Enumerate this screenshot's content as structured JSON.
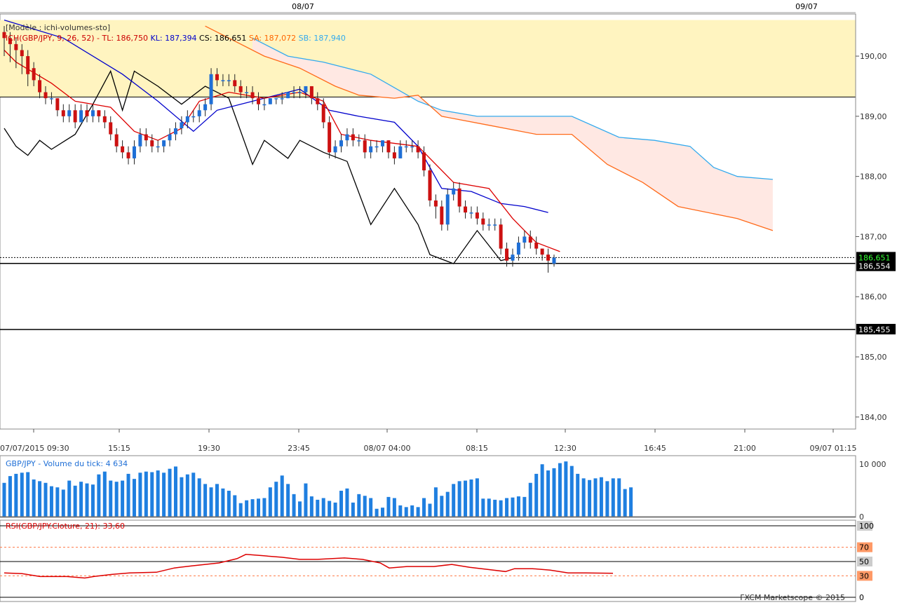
{
  "top_dates": [
    "08/07",
    "09/07"
  ],
  "main_panel": {
    "model_label": "[Modèle : ichi-volumes-sto]",
    "legend": [
      {
        "text": "ICH(GBP/JPY, 9, 26, 52) -",
        "color": "#cc0000"
      },
      {
        "text": "TL: 186,750",
        "color": "#cc0000"
      },
      {
        "text": "KL: 187,394",
        "color": "#0000cc"
      },
      {
        "text": "CS: 186,651",
        "color": "#000000"
      },
      {
        "text": "SA: 187,072",
        "color": "#ff6600"
      },
      {
        "text": "SB: 187,940",
        "color": "#33aaee"
      }
    ],
    "price_badges": [
      {
        "label": "186,651",
        "value": 186.651,
        "bg": "#000000",
        "fg": "#33ff33"
      },
      {
        "label": "186,554",
        "value": 186.554,
        "bg": "#000000",
        "fg": "#ffffff"
      },
      {
        "label": "185,455",
        "value": 185.455,
        "bg": "#000000",
        "fg": "#ffffff"
      }
    ]
  },
  "time_labels": [
    "07/07/2015 09:30",
    "15:15",
    "19:30",
    "23:45",
    "08/07 04:00",
    "08:15",
    "12:30",
    "16:45",
    "21:00",
    "09/07 01:15"
  ],
  "volume_panel": {
    "label": "GBP/JPY - Volume du tick: 4 634",
    "ticks": [
      "10 000",
      "0"
    ]
  },
  "rsi_panel": {
    "label": "RSI(GBP/JPY.Cloture, 21): 33,60",
    "ticks": [
      "100",
      "70",
      "50",
      "30",
      "0"
    ]
  },
  "footer": "FXCM Marketscope © 2015",
  "colors": {
    "bull": "#1f6fd6",
    "bear": "#cc1111",
    "tenkan": "#dd0000",
    "kijun": "#0000cc",
    "chikou": "#000000",
    "span_a": "#ff6a1a",
    "span_b": "#33aaee",
    "cloud_fill": "#ffe8e3",
    "volume": "#1f7fe0",
    "rsi": "#dd0000",
    "zone": "#fff4c0"
  },
  "chart_data": {
    "type": "candlestick",
    "symbol": "GBP/JPY",
    "ylim": [
      183.8,
      190.7
    ],
    "yticks": [
      184,
      185,
      186,
      187,
      188,
      189,
      190
    ],
    "candles": [
      [
        190.4,
        190.5,
        190.0,
        190.3
      ],
      [
        190.3,
        190.4,
        189.9,
        190.2
      ],
      [
        190.2,
        190.3,
        189.8,
        190.1
      ],
      [
        190.1,
        190.2,
        189.7,
        190.0
      ],
      [
        190.0,
        190.1,
        189.5,
        189.7
      ],
      [
        189.8,
        189.9,
        189.5,
        189.6
      ],
      [
        189.6,
        189.7,
        189.3,
        189.4
      ],
      [
        189.4,
        189.5,
        189.2,
        189.3
      ],
      [
        189.3,
        189.4,
        189.2,
        189.3
      ],
      [
        189.3,
        189.3,
        189.0,
        189.1
      ],
      [
        189.1,
        189.2,
        188.9,
        189.0
      ],
      [
        189.0,
        189.2,
        188.9,
        189.1
      ],
      [
        189.1,
        189.2,
        188.8,
        188.9
      ],
      [
        188.9,
        189.2,
        188.9,
        189.1
      ],
      [
        189.1,
        189.2,
        188.9,
        189.0
      ],
      [
        189.0,
        189.2,
        188.9,
        189.1
      ],
      [
        189.1,
        189.1,
        188.9,
        189.0
      ],
      [
        189.0,
        189.1,
        188.8,
        188.9
      ],
      [
        188.9,
        189.0,
        188.6,
        188.7
      ],
      [
        188.7,
        188.8,
        188.4,
        188.5
      ],
      [
        188.5,
        188.6,
        188.3,
        188.4
      ],
      [
        188.4,
        188.5,
        188.2,
        188.3
      ],
      [
        188.3,
        188.6,
        188.2,
        188.5
      ],
      [
        188.5,
        188.8,
        188.4,
        188.7
      ],
      [
        188.7,
        188.8,
        188.5,
        188.6
      ],
      [
        188.6,
        188.7,
        188.4,
        188.5
      ],
      [
        188.5,
        188.6,
        188.4,
        188.5
      ],
      [
        188.5,
        188.6,
        188.4,
        188.6
      ],
      [
        188.6,
        188.8,
        188.5,
        188.7
      ],
      [
        188.7,
        188.9,
        188.6,
        188.8
      ],
      [
        188.8,
        189.0,
        188.7,
        188.9
      ],
      [
        188.9,
        189.1,
        188.8,
        189.0
      ],
      [
        189.0,
        189.1,
        188.9,
        189.0
      ],
      [
        189.0,
        189.2,
        188.9,
        189.1
      ],
      [
        189.1,
        189.3,
        189.0,
        189.2
      ],
      [
        189.2,
        189.8,
        189.1,
        189.7
      ],
      [
        189.7,
        189.8,
        189.5,
        189.6
      ],
      [
        189.6,
        189.7,
        189.5,
        189.6
      ],
      [
        189.6,
        189.7,
        189.5,
        189.6
      ],
      [
        189.6,
        189.7,
        189.4,
        189.5
      ],
      [
        189.5,
        189.6,
        189.3,
        189.4
      ],
      [
        189.4,
        189.5,
        189.3,
        189.4
      ],
      [
        189.4,
        189.5,
        189.2,
        189.3
      ],
      [
        189.3,
        189.4,
        189.1,
        189.2
      ],
      [
        189.2,
        189.3,
        189.1,
        189.2
      ],
      [
        189.2,
        189.3,
        189.2,
        189.3
      ],
      [
        189.3,
        189.3,
        189.2,
        189.3
      ],
      [
        189.3,
        189.4,
        189.2,
        189.3
      ],
      [
        189.3,
        189.4,
        189.3,
        189.4
      ],
      [
        189.4,
        189.5,
        189.3,
        189.4
      ],
      [
        189.4,
        189.5,
        189.3,
        189.4
      ],
      [
        189.4,
        189.5,
        189.3,
        189.5
      ],
      [
        189.5,
        189.5,
        189.2,
        189.3
      ],
      [
        189.3,
        189.4,
        189.1,
        189.2
      ],
      [
        189.2,
        189.3,
        188.8,
        188.9
      ],
      [
        188.9,
        189.0,
        188.3,
        188.4
      ],
      [
        188.4,
        188.6,
        188.3,
        188.5
      ],
      [
        188.5,
        188.7,
        188.4,
        188.6
      ],
      [
        188.6,
        188.8,
        188.5,
        188.7
      ],
      [
        188.7,
        188.8,
        188.5,
        188.6
      ],
      [
        188.6,
        188.7,
        188.5,
        188.6
      ],
      [
        188.6,
        188.7,
        188.3,
        188.4
      ],
      [
        188.4,
        188.6,
        188.3,
        188.5
      ],
      [
        188.5,
        188.6,
        188.4,
        188.5
      ],
      [
        188.5,
        188.6,
        188.4,
        188.6
      ],
      [
        188.6,
        188.6,
        188.3,
        188.4
      ],
      [
        188.4,
        188.5,
        188.2,
        188.3
      ],
      [
        188.3,
        188.6,
        188.3,
        188.5
      ],
      [
        188.5,
        188.6,
        188.4,
        188.5
      ],
      [
        188.5,
        188.6,
        188.4,
        188.5
      ],
      [
        188.5,
        188.6,
        188.3,
        188.4
      ],
      [
        188.4,
        188.5,
        188.0,
        188.1
      ],
      [
        188.1,
        188.2,
        187.5,
        187.6
      ],
      [
        187.6,
        187.7,
        187.3,
        187.5
      ],
      [
        187.5,
        187.6,
        187.1,
        187.2
      ],
      [
        187.2,
        187.8,
        187.1,
        187.7
      ],
      [
        187.7,
        187.9,
        187.6,
        187.8
      ],
      [
        187.8,
        187.9,
        187.4,
        187.5
      ],
      [
        187.5,
        187.6,
        187.3,
        187.4
      ],
      [
        187.4,
        187.5,
        187.3,
        187.4
      ],
      [
        187.4,
        187.5,
        187.2,
        187.3
      ],
      [
        187.3,
        187.4,
        187.1,
        187.2
      ],
      [
        187.2,
        187.3,
        187.1,
        187.2
      ],
      [
        187.2,
        187.3,
        187.1,
        187.2
      ],
      [
        187.2,
        187.3,
        186.7,
        186.8
      ],
      [
        186.8,
        186.9,
        186.5,
        186.6
      ],
      [
        186.6,
        186.8,
        186.5,
        186.7
      ],
      [
        186.7,
        187.0,
        186.6,
        186.9
      ],
      [
        186.9,
        187.1,
        186.8,
        187.0
      ],
      [
        187.0,
        187.1,
        186.8,
        186.9
      ],
      [
        186.9,
        187.0,
        186.7,
        186.8
      ],
      [
        186.8,
        186.8,
        186.6,
        186.7
      ],
      [
        186.7,
        186.8,
        186.4,
        186.6
      ],
      [
        186.55,
        186.7,
        186.5,
        186.65
      ]
    ],
    "tenkan": [
      [
        0,
        190.1
      ],
      [
        2,
        189.9
      ],
      [
        8,
        189.55
      ],
      [
        12,
        189.25
      ],
      [
        18,
        189.15
      ],
      [
        22,
        188.75
      ],
      [
        26,
        188.6
      ],
      [
        30,
        188.8
      ],
      [
        33,
        189.25
      ],
      [
        38,
        189.4
      ],
      [
        44,
        189.3
      ],
      [
        50,
        189.4
      ],
      [
        54,
        189.25
      ],
      [
        57,
        188.7
      ],
      [
        62,
        188.6
      ],
      [
        70,
        188.5
      ],
      [
        76,
        187.9
      ],
      [
        82,
        187.8
      ],
      [
        86,
        187.3
      ],
      [
        90,
        186.9
      ],
      [
        94,
        186.75
      ]
    ],
    "kijun": [
      [
        0,
        190.6
      ],
      [
        10,
        190.3
      ],
      [
        20,
        189.7
      ],
      [
        26,
        189.25
      ],
      [
        32,
        188.75
      ],
      [
        36,
        189.1
      ],
      [
        50,
        189.45
      ],
      [
        55,
        189.1
      ],
      [
        60,
        189.0
      ],
      [
        66,
        188.9
      ],
      [
        70,
        188.5
      ],
      [
        74,
        187.8
      ],
      [
        79,
        187.75
      ],
      [
        84,
        187.55
      ],
      [
        88,
        187.5
      ],
      [
        92,
        187.4
      ]
    ],
    "chikou": [
      [
        0,
        188.8
      ],
      [
        2,
        188.5
      ],
      [
        4,
        188.35
      ],
      [
        6,
        188.6
      ],
      [
        8,
        188.45
      ],
      [
        12,
        188.7
      ],
      [
        15,
        189.2
      ],
      [
        18,
        189.75
      ],
      [
        20,
        189.1
      ],
      [
        22,
        189.75
      ],
      [
        26,
        189.5
      ],
      [
        30,
        189.2
      ],
      [
        34,
        189.5
      ],
      [
        38,
        189.3
      ],
      [
        42,
        188.2
      ],
      [
        44,
        188.6
      ],
      [
        48,
        188.3
      ],
      [
        50,
        188.6
      ],
      [
        54,
        188.4
      ],
      [
        58,
        188.25
      ],
      [
        62,
        187.2
      ],
      [
        66,
        187.8
      ],
      [
        70,
        187.2
      ],
      [
        72,
        186.7
      ],
      [
        76,
        186.55
      ],
      [
        80,
        187.1
      ],
      [
        84,
        186.6
      ],
      [
        86,
        186.65
      ]
    ],
    "span_a": [
      [
        34,
        190.5
      ],
      [
        38,
        190.3
      ],
      [
        44,
        190.0
      ],
      [
        50,
        189.8
      ],
      [
        56,
        189.5
      ],
      [
        60,
        189.35
      ],
      [
        66,
        189.3
      ],
      [
        70,
        189.35
      ],
      [
        74,
        189.0
      ],
      [
        82,
        188.85
      ],
      [
        90,
        188.7
      ],
      [
        96,
        188.7
      ],
      [
        102,
        188.2
      ],
      [
        108,
        187.9
      ],
      [
        114,
        187.5
      ],
      [
        124,
        187.3
      ],
      [
        130,
        187.1
      ]
    ],
    "span_b": [
      [
        42,
        190.3
      ],
      [
        48,
        190.0
      ],
      [
        54,
        189.9
      ],
      [
        62,
        189.7
      ],
      [
        70,
        189.25
      ],
      [
        74,
        189.1
      ],
      [
        80,
        189.0
      ],
      [
        96,
        189.0
      ],
      [
        104,
        188.65
      ],
      [
        110,
        188.6
      ],
      [
        116,
        188.5
      ],
      [
        120,
        188.15
      ],
      [
        124,
        188.0
      ],
      [
        130,
        187.95
      ]
    ],
    "volumes": [
      6000,
      7200,
      7600,
      7800,
      7900,
      6600,
      6300,
      6000,
      5400,
      5200,
      4800,
      6400,
      5500,
      6200,
      5900,
      5700,
      7500,
      8000,
      6400,
      6200,
      6400,
      7600,
      6700,
      7800,
      8000,
      7900,
      8200,
      7800,
      8500,
      8900,
      7000,
      7500,
      7800,
      6800,
      5800,
      5200,
      5800,
      5000,
      4600,
      3800,
      2400,
      2900,
      3100,
      3200,
      3300,
      5200,
      6200,
      7300,
      5800,
      4000,
      2700,
      5900,
      3600,
      3000,
      3300,
      2800,
      2500,
      4600,
      5000,
      2500,
      4000,
      3700,
      3300,
      1400,
      1600,
      3500,
      3300,
      2000,
      1700,
      2000,
      1700,
      3300,
      2300,
      5200,
      3700,
      4400,
      5800,
      6300,
      6400,
      6600,
      6800,
      3200,
      3200,
      3000,
      2900,
      3300,
      3400,
      3600,
      3500,
      6000,
      7600,
      9300,
      8200,
      8600,
      9500,
      9800,
      9000,
      7600,
      6800,
      6500,
      6800,
      7000,
      6300,
      6800,
      6800,
      4900,
      5200
    ],
    "volume_ylim": [
      0,
      10200
    ],
    "rsi": [
      [
        0,
        34
      ],
      [
        4,
        33
      ],
      [
        8,
        29
      ],
      [
        14,
        29
      ],
      [
        18,
        27
      ],
      [
        20,
        29
      ],
      [
        24,
        32
      ],
      [
        28,
        34
      ],
      [
        34,
        35
      ],
      [
        38,
        41
      ],
      [
        42,
        44
      ],
      [
        48,
        48
      ],
      [
        52,
        54
      ],
      [
        54,
        60
      ],
      [
        58,
        58
      ],
      [
        62,
        56
      ],
      [
        66,
        53
      ],
      [
        70,
        53
      ],
      [
        76,
        55
      ],
      [
        80,
        53
      ],
      [
        84,
        48
      ],
      [
        86,
        41
      ],
      [
        90,
        43
      ],
      [
        96,
        43
      ],
      [
        100,
        46
      ],
      [
        104,
        42
      ],
      [
        108,
        39
      ],
      [
        112,
        36
      ],
      [
        114,
        40
      ],
      [
        118,
        40
      ],
      [
        122,
        38
      ],
      [
        126,
        34
      ],
      [
        130,
        34
      ],
      [
        136,
        33.6
      ]
    ],
    "rsi_ylim": [
      0,
      100
    ],
    "horizontal_lines": [
      186.651,
      186.554,
      185.455
    ]
  }
}
